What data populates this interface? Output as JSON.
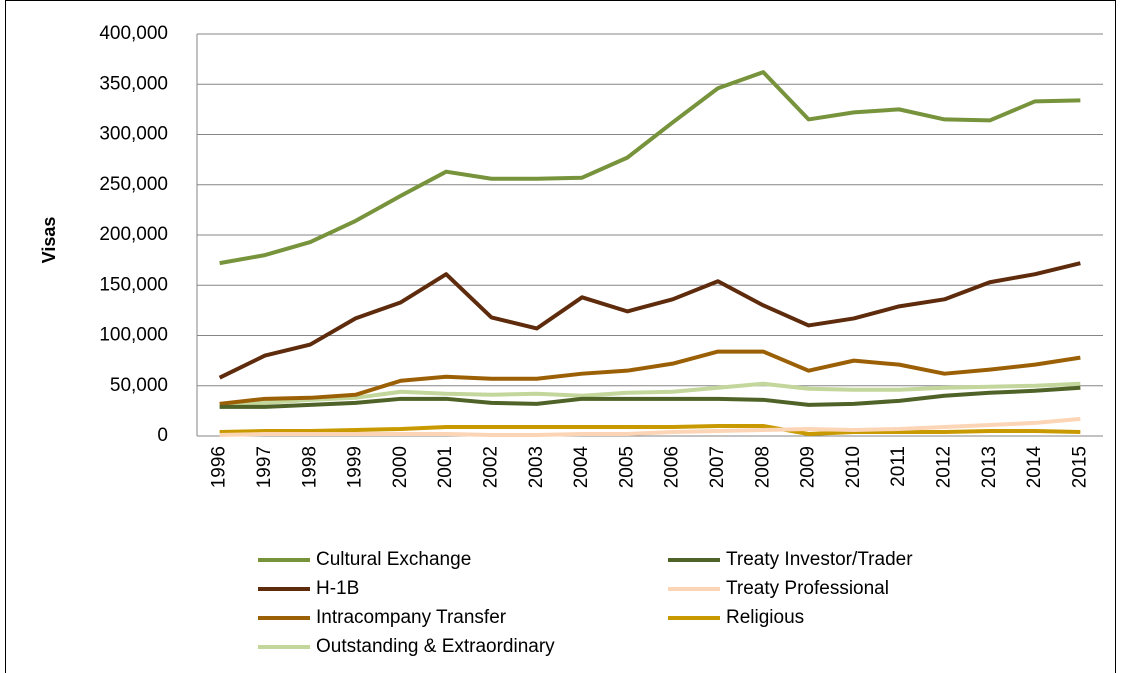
{
  "chart_data": {
    "type": "line",
    "y_label": "Visas",
    "categories": [
      "1996",
      "1997",
      "1998",
      "1999",
      "2000",
      "2001",
      "2002",
      "2003",
      "2004",
      "2005",
      "2006",
      "2007",
      "2008",
      "2009",
      "2010",
      "2011",
      "2012",
      "2013",
      "2014",
      "2015"
    ],
    "series": [
      {
        "name": "Cultural Exchange",
        "color": "#77933c",
        "values": [
          172000,
          180000,
          193000,
          214000,
          239000,
          263000,
          256000,
          256000,
          257000,
          277000,
          312000,
          346000,
          362000,
          315000,
          322000,
          325000,
          315000,
          314000,
          333000,
          334000
        ]
      },
      {
        "name": "Treaty Investor/Trader",
        "color": "#4f6228",
        "values": [
          29000,
          29000,
          31000,
          33000,
          37000,
          37000,
          33000,
          32000,
          37000,
          37000,
          37000,
          37000,
          36000,
          31000,
          32000,
          35000,
          40000,
          43000,
          45000,
          48000
        ]
      },
      {
        "name": "H-1B",
        "color": "#5e2b0c",
        "values": [
          58000,
          80000,
          91000,
          117000,
          133000,
          161000,
          118000,
          107000,
          138000,
          124000,
          136000,
          154000,
          130000,
          110000,
          117000,
          129000,
          136000,
          153000,
          161000,
          172000
        ]
      },
      {
        "name": "Treaty Professional",
        "color": "#fbd5b5",
        "values": [
          1000,
          2000,
          2000,
          2000,
          2000,
          2000,
          1000,
          1000,
          2000,
          2000,
          4000,
          5000,
          6000,
          7000,
          6000,
          7000,
          9000,
          11000,
          13000,
          17000
        ]
      },
      {
        "name": "Intracompany Transfer",
        "color": "#9b6006",
        "values": [
          32000,
          37000,
          38000,
          41000,
          55000,
          59000,
          57000,
          57000,
          62000,
          65000,
          72000,
          84000,
          84000,
          65000,
          75000,
          71000,
          62000,
          66000,
          71000,
          78000
        ]
      },
      {
        "name": "Religious",
        "color": "#c99a00",
        "values": [
          4000,
          5000,
          5000,
          6000,
          7000,
          9000,
          9000,
          9000,
          9000,
          9000,
          9000,
          10000,
          10000,
          2000,
          4000,
          4000,
          4000,
          5000,
          5000,
          4000
        ]
      },
      {
        "name": "Outstanding & Extraordinary",
        "color": "#c3d69b",
        "values": [
          29000,
          33000,
          36000,
          38000,
          44000,
          42000,
          41000,
          42000,
          40000,
          43000,
          44000,
          48000,
          52000,
          47000,
          46000,
          46000,
          48000,
          49000,
          50000,
          52000
        ]
      }
    ],
    "ylim": [
      0,
      400000
    ],
    "yticks": [
      0,
      {
        "value": 50000,
        "label": "50,000"
      },
      {
        "value": 100000,
        "label": "100,000"
      },
      {
        "value": 150000,
        "label": "150,000"
      },
      {
        "value": 200000,
        "label": "200,000"
      },
      {
        "value": 250000,
        "label": "250,000"
      },
      {
        "value": 300000,
        "label": "300,000"
      },
      {
        "value": 350000,
        "label": "350,000"
      },
      {
        "value": 400000,
        "label": "400,000"
      }
    ],
    "grid": true,
    "legend": "bottom"
  }
}
